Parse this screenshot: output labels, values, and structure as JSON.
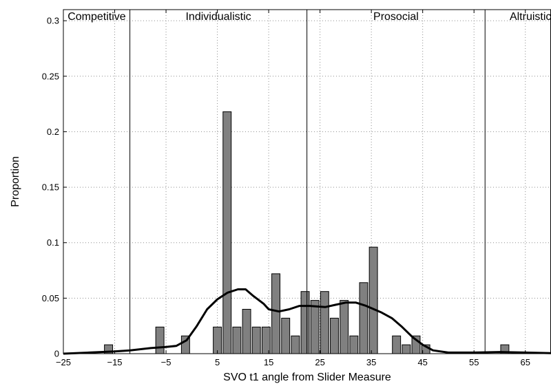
{
  "chart_data": {
    "type": "bar",
    "xlabel": "SVO t1 angle from Slider Measure",
    "ylabel": "Proportion",
    "xlim": [
      -25,
      70
    ],
    "ylim": [
      0,
      0.31
    ],
    "grid": true,
    "x_ticks": [
      -25,
      -15,
      -5,
      5,
      15,
      25,
      35,
      45,
      55,
      65
    ],
    "x_tick_labels": [
      "−25",
      "−15",
      "−5",
      "5",
      "15",
      "25",
      "35",
      "45",
      "55",
      "65"
    ],
    "y_ticks": [
      0,
      0.05,
      0.1,
      0.15,
      0.2,
      0.25,
      0.3
    ],
    "y_tick_labels": [
      "0",
      "0.05",
      "0.1",
      "0.15",
      "0.2",
      "0.25",
      "0.3"
    ],
    "bar_width": 1.6,
    "bars": [
      {
        "x": -16.2,
        "value": 0.008
      },
      {
        "x": -6.2,
        "value": 0.024
      },
      {
        "x": -1.2,
        "value": 0.016
      },
      {
        "x": 5.0,
        "value": 0.024
      },
      {
        "x": 6.9,
        "value": 0.218
      },
      {
        "x": 8.8,
        "value": 0.024
      },
      {
        "x": 10.7,
        "value": 0.04
      },
      {
        "x": 12.6,
        "value": 0.024
      },
      {
        "x": 14.5,
        "value": 0.024
      },
      {
        "x": 16.4,
        "value": 0.072
      },
      {
        "x": 18.3,
        "value": 0.032
      },
      {
        "x": 20.2,
        "value": 0.016
      },
      {
        "x": 22.1,
        "value": 0.056
      },
      {
        "x": 24.0,
        "value": 0.048
      },
      {
        "x": 25.9,
        "value": 0.056
      },
      {
        "x": 27.8,
        "value": 0.032
      },
      {
        "x": 29.7,
        "value": 0.048
      },
      {
        "x": 31.6,
        "value": 0.016
      },
      {
        "x": 33.5,
        "value": 0.064
      },
      {
        "x": 35.4,
        "value": 0.096
      },
      {
        "x": 39.9,
        "value": 0.016
      },
      {
        "x": 41.8,
        "value": 0.008
      },
      {
        "x": 43.7,
        "value": 0.016
      },
      {
        "x": 45.6,
        "value": 0.008
      },
      {
        "x": 61.0,
        "value": 0.008
      }
    ],
    "density_curve": [
      [
        -25,
        0.0
      ],
      [
        -20,
        0.001
      ],
      [
        -15,
        0.002
      ],
      [
        -12,
        0.003
      ],
      [
        -8,
        0.005
      ],
      [
        -5,
        0.006
      ],
      [
        -3,
        0.007
      ],
      [
        -1,
        0.012
      ],
      [
        1,
        0.025
      ],
      [
        3,
        0.04
      ],
      [
        5,
        0.049
      ],
      [
        7,
        0.055
      ],
      [
        9,
        0.058
      ],
      [
        10.5,
        0.058
      ],
      [
        12,
        0.052
      ],
      [
        14,
        0.045
      ],
      [
        15,
        0.04
      ],
      [
        17,
        0.038
      ],
      [
        19,
        0.04
      ],
      [
        21,
        0.043
      ],
      [
        23,
        0.043
      ],
      [
        26,
        0.042
      ],
      [
        28,
        0.044
      ],
      [
        30,
        0.046
      ],
      [
        32,
        0.046
      ],
      [
        34,
        0.043
      ],
      [
        37,
        0.037
      ],
      [
        39,
        0.032
      ],
      [
        41,
        0.024
      ],
      [
        43,
        0.015
      ],
      [
        45,
        0.008
      ],
      [
        47,
        0.003
      ],
      [
        50,
        0.001
      ],
      [
        55,
        0.001
      ],
      [
        60,
        0.0015
      ],
      [
        65,
        0.001
      ],
      [
        70,
        0.0005
      ]
    ],
    "boundaries": [
      -12.04,
      22.45,
      57.15
    ],
    "regions": [
      {
        "label": "Competitive",
        "x": -18.5
      },
      {
        "label": "Individualistic",
        "x": 5.2
      },
      {
        "label": "Prosocial",
        "x": 39.8
      },
      {
        "label": "Altruistic",
        "x": 66.0
      }
    ],
    "colors": {
      "bar_fill": "#808080",
      "bar_stroke": "#000000",
      "curve": "#000000",
      "grid": "#8c8c8c"
    }
  }
}
